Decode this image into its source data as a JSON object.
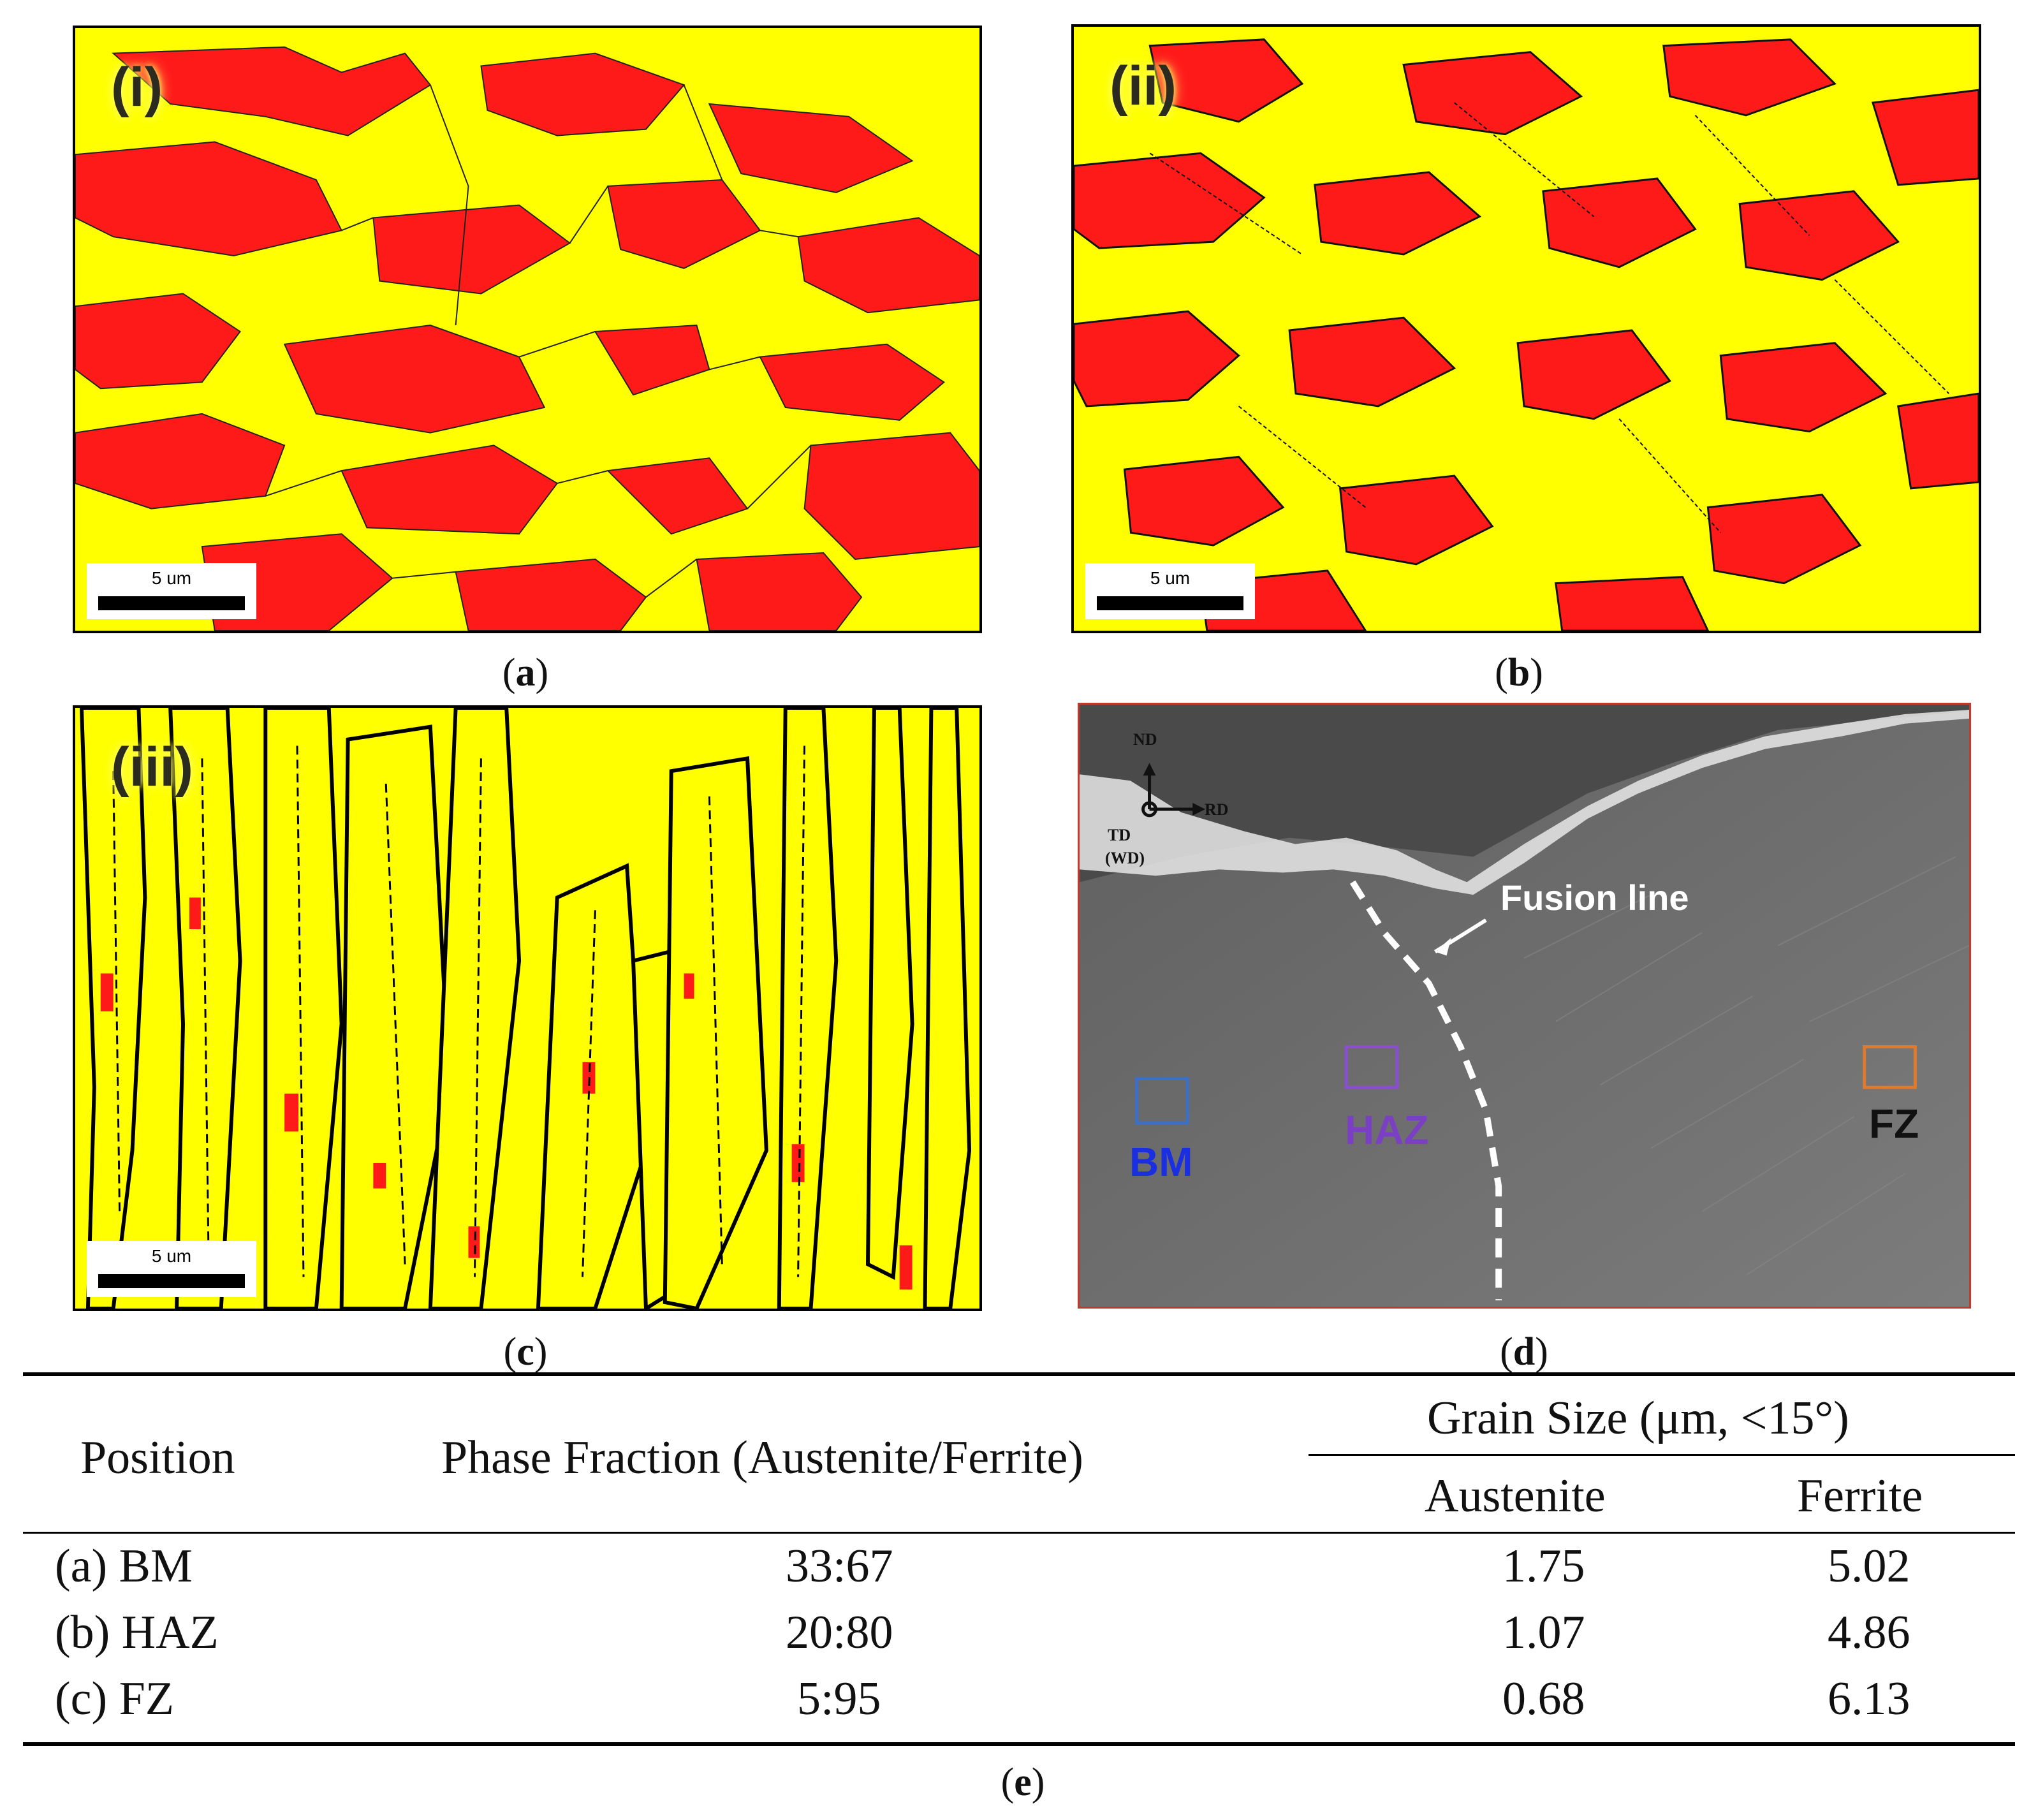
{
  "panels": {
    "a": {
      "label": "(i)",
      "scale": "5 um",
      "caption_letter": "a"
    },
    "b": {
      "label": "(ii)",
      "scale": "5 um",
      "caption_letter": "b"
    },
    "c": {
      "label": "(iii)",
      "scale": "5 um",
      "caption_letter": "c"
    },
    "d": {
      "caption_letter": "d",
      "axis": {
        "nd": "ND",
        "rd": "RD",
        "td": "TD",
        "wd": "(WD)"
      },
      "fusion_line": "Fusion line",
      "regions": [
        {
          "name": "BM",
          "color": "#1a2fe0"
        },
        {
          "name": "HAZ",
          "color": "#7b3fc4"
        },
        {
          "name": "FZ",
          "color": "#111111"
        }
      ],
      "box_colors": {
        "bm": "#3b6fc9",
        "haz": "#8a4fd0",
        "fz": "#e07a2e"
      }
    }
  },
  "phase_colors": {
    "austenite": "#ff1a1a",
    "ferrite": "#ffff00"
  },
  "table": {
    "caption_letter": "e",
    "headers": {
      "position": "Position",
      "phase_fraction": "Phase Fraction (Austenite/Ferrite)",
      "grain_size": "Grain Size (μm, <15°)",
      "austenite": "Austenite",
      "ferrite": "Ferrite"
    },
    "rows": [
      {
        "position": "(a) BM",
        "fraction": "33:67",
        "austenite": "1.75",
        "ferrite": "5.02"
      },
      {
        "position": "(b) HAZ",
        "fraction": "20:80",
        "austenite": "1.07",
        "ferrite": "4.86"
      },
      {
        "position": "(c) FZ",
        "fraction": "5:95",
        "austenite": "0.68",
        "ferrite": "6.13"
      }
    ]
  }
}
